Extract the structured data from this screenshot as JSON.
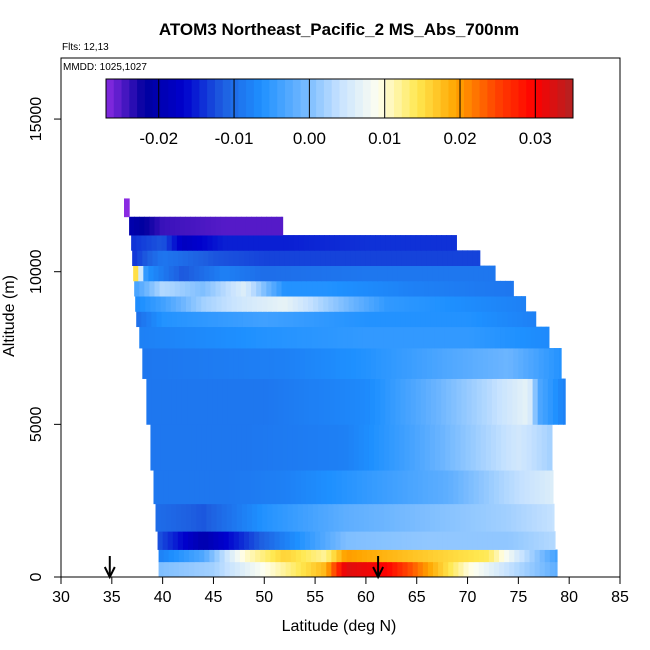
{
  "chart_data": {
    "type": "heatmap",
    "title": "ATOM3 Northeast_Pacific_2 MS_Abs_700nm",
    "annotations": {
      "flights": "Flts: 12,13",
      "dates": "MMDD: 1025,1027"
    },
    "xlabel": "Latitude (deg N)",
    "ylabel": "Altitude (m)",
    "xlim": [
      30,
      85
    ],
    "ylim": [
      0,
      17000
    ],
    "x_ticks": [
      30,
      35,
      40,
      45,
      50,
      55,
      60,
      65,
      70,
      75,
      80,
      85
    ],
    "y_ticks": [
      0,
      5000,
      10000,
      15000
    ],
    "colorbar": {
      "range": [
        -0.027,
        0.035
      ],
      "ticks": [
        -0.02,
        -0.01,
        0.0,
        0.01,
        0.02,
        0.03
      ],
      "tick_labels": [
        "-0.02",
        "-0.01",
        "0.00",
        "0.01",
        "0.02",
        "0.03"
      ],
      "colors": [
        "#8a2be2",
        "#00009e",
        "#0000cd",
        "#1e5fe0",
        "#1e90ff",
        "#6ab4ff",
        "#c6e2ff",
        "#fffff0",
        "#ffe850",
        "#ffa500",
        "#ff4500",
        "#ff0000",
        "#b22222"
      ]
    },
    "arrows_latitude": [
      34.8,
      61.2
    ],
    "layers": [
      {
        "alt": [
          0,
          500
        ],
        "lat": [
          39.6,
          78.8
        ],
        "profile": [
          [
            39.6,
            0.0
          ],
          [
            45,
            0.002
          ],
          [
            52,
            0.012
          ],
          [
            56,
            0.018
          ],
          [
            58,
            0.032
          ],
          [
            62,
            0.03
          ],
          [
            66,
            0.02
          ],
          [
            70,
            0.01
          ],
          [
            74,
            0.004
          ],
          [
            78.8,
            -0.002
          ]
        ]
      },
      {
        "alt": [
          500,
          900
        ],
        "lat": [
          39.6,
          78.8
        ],
        "profile": [
          [
            39.6,
            -0.008
          ],
          [
            44,
            -0.003
          ],
          [
            48,
            0.01
          ],
          [
            52,
            0.016
          ],
          [
            56,
            0.012
          ],
          [
            58,
            0.02
          ],
          [
            65,
            0.017
          ],
          [
            72,
            0.014
          ],
          [
            75,
            0.005
          ],
          [
            78.8,
            -0.004
          ]
        ]
      },
      {
        "alt": [
          900,
          1500
        ],
        "lat": [
          39.5,
          78.6
        ],
        "profile": [
          [
            39.5,
            -0.012
          ],
          [
            44,
            -0.02
          ],
          [
            48,
            -0.014
          ],
          [
            52,
            -0.008
          ],
          [
            58,
            0.0
          ],
          [
            66,
            0.001
          ],
          [
            74,
            0.001
          ],
          [
            78.6,
            0.003
          ]
        ]
      },
      {
        "alt": [
          1500,
          2400
        ],
        "lat": [
          39.3,
          78.5
        ],
        "profile": [
          [
            39.3,
            -0.01
          ],
          [
            44,
            -0.012
          ],
          [
            50,
            -0.006
          ],
          [
            58,
            -0.002
          ],
          [
            66,
            0.0
          ],
          [
            74,
            0.002
          ],
          [
            78.5,
            0.004
          ]
        ]
      },
      {
        "alt": [
          2400,
          3500
        ],
        "lat": [
          39.1,
          78.4
        ],
        "profile": [
          [
            39.1,
            -0.009
          ],
          [
            46,
            -0.009
          ],
          [
            52,
            -0.008
          ],
          [
            60,
            -0.005
          ],
          [
            68,
            -0.002
          ],
          [
            74,
            0.003
          ],
          [
            78.4,
            0.006
          ]
        ]
      },
      {
        "alt": [
          3500,
          5000
        ],
        "lat": [
          38.8,
          78.3
        ],
        "profile": [
          [
            38.8,
            -0.009
          ],
          [
            48,
            -0.009
          ],
          [
            58,
            -0.008
          ],
          [
            64,
            -0.004
          ],
          [
            70,
            0.001
          ],
          [
            75,
            0.005
          ],
          [
            78.3,
            0.002
          ]
        ]
      },
      {
        "alt": [
          5000,
          6500
        ],
        "lat": [
          38.4,
          79.6
        ],
        "profile": [
          [
            38.4,
            -0.009
          ],
          [
            50,
            -0.009
          ],
          [
            60,
            -0.007
          ],
          [
            66,
            -0.002
          ],
          [
            72,
            0.003
          ],
          [
            76,
            0.007
          ],
          [
            77,
            -0.003
          ],
          [
            79.6,
            -0.008
          ]
        ]
      },
      {
        "alt": [
          6500,
          7500
        ],
        "lat": [
          38.0,
          79.2
        ],
        "profile": [
          [
            38.0,
            -0.009
          ],
          [
            52,
            -0.008
          ],
          [
            60,
            -0.006
          ],
          [
            68,
            -0.003
          ],
          [
            74,
            -0.001
          ],
          [
            79.2,
            -0.006
          ]
        ]
      },
      {
        "alt": [
          7500,
          8200
        ],
        "lat": [
          37.7,
          78.0
        ],
        "profile": [
          [
            37.7,
            -0.008
          ],
          [
            50,
            -0.006
          ],
          [
            60,
            -0.005
          ],
          [
            70,
            -0.005
          ],
          [
            78.0,
            -0.007
          ]
        ]
      },
      {
        "alt": [
          8200,
          8700
        ],
        "lat": [
          37.4,
          76.7
        ],
        "profile": [
          [
            37.4,
            -0.01
          ],
          [
            40,
            -0.006
          ],
          [
            50,
            -0.004
          ],
          [
            60,
            -0.006
          ],
          [
            70,
            -0.006
          ],
          [
            76.7,
            -0.008
          ]
        ]
      },
      {
        "alt": [
          8700,
          9200
        ],
        "lat": [
          37.3,
          75.7
        ],
        "profile": [
          [
            37.3,
            -0.007
          ],
          [
            40,
            -0.004
          ],
          [
            44,
            0.002
          ],
          [
            48,
            0.005
          ],
          [
            52,
            0.007
          ],
          [
            56,
            0.002
          ],
          [
            62,
            -0.005
          ],
          [
            75.7,
            -0.008
          ]
        ]
      },
      {
        "alt": [
          9200,
          9700
        ],
        "lat": [
          37.2,
          74.5
        ],
        "profile": [
          [
            37.2,
            -0.004
          ],
          [
            40,
            0.003
          ],
          [
            44,
            0.0
          ],
          [
            48,
            0.006
          ],
          [
            52,
            -0.006
          ],
          [
            56,
            -0.006
          ],
          [
            65,
            -0.008
          ],
          [
            74.5,
            -0.009
          ]
        ]
      },
      {
        "alt": [
          9700,
          10200
        ],
        "lat": [
          37.1,
          72.7
        ],
        "profile": [
          [
            37.1,
            0.02
          ],
          [
            38.4,
            -0.006
          ],
          [
            42,
            -0.012
          ],
          [
            46,
            -0.008
          ],
          [
            50,
            -0.01
          ],
          [
            60,
            -0.009
          ],
          [
            72.7,
            -0.009
          ]
        ]
      },
      {
        "alt": [
          10200,
          10700
        ],
        "lat": [
          37.0,
          71.2
        ],
        "profile": [
          [
            37.0,
            -0.014
          ],
          [
            40,
            -0.009
          ],
          [
            45,
            -0.012
          ],
          [
            50,
            -0.013
          ],
          [
            60,
            -0.013
          ],
          [
            71.2,
            -0.013
          ]
        ]
      },
      {
        "alt": [
          10700,
          11200
        ],
        "lat": [
          36.9,
          68.9
        ],
        "profile": [
          [
            36.9,
            -0.014
          ],
          [
            40,
            -0.012
          ],
          [
            42,
            -0.018
          ],
          [
            46,
            -0.015
          ],
          [
            52,
            -0.015
          ],
          [
            60,
            -0.014
          ],
          [
            68.9,
            -0.014
          ]
        ]
      },
      {
        "alt": [
          11200,
          11800
        ],
        "lat": [
          36.7,
          51.8
        ],
        "profile": [
          [
            36.7,
            -0.02
          ],
          [
            40,
            -0.024
          ],
          [
            46,
            -0.025
          ],
          [
            51.8,
            -0.025
          ]
        ]
      },
      {
        "alt": [
          11800,
          12400
        ],
        "lat": [
          36.2,
          36.7
        ],
        "profile": [
          [
            36.2,
            -0.027
          ],
          [
            36.7,
            -0.027
          ]
        ]
      }
    ]
  }
}
